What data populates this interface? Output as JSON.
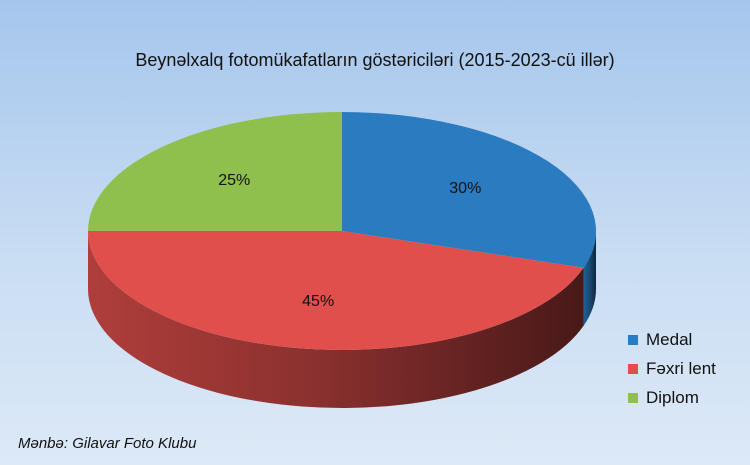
{
  "chart_data": {
    "type": "pie",
    "title": "Beynəlxalq fotomükafatların göstəriciləri (2015-2023-cü illər)",
    "slices": [
      {
        "label": "Medal",
        "value": 30,
        "display": "30%",
        "color": "#2a7bc0"
      },
      {
        "label": "Fəxri lent",
        "value": 45,
        "display": "45%",
        "color": "#e04f4c"
      },
      {
        "label": "Diplom",
        "value": 25,
        "display": "25%",
        "color": "#8fbf4d"
      }
    ],
    "legend_position": "right",
    "style": "3d"
  },
  "source": "Mənbə: Gilavar Foto Klubu"
}
